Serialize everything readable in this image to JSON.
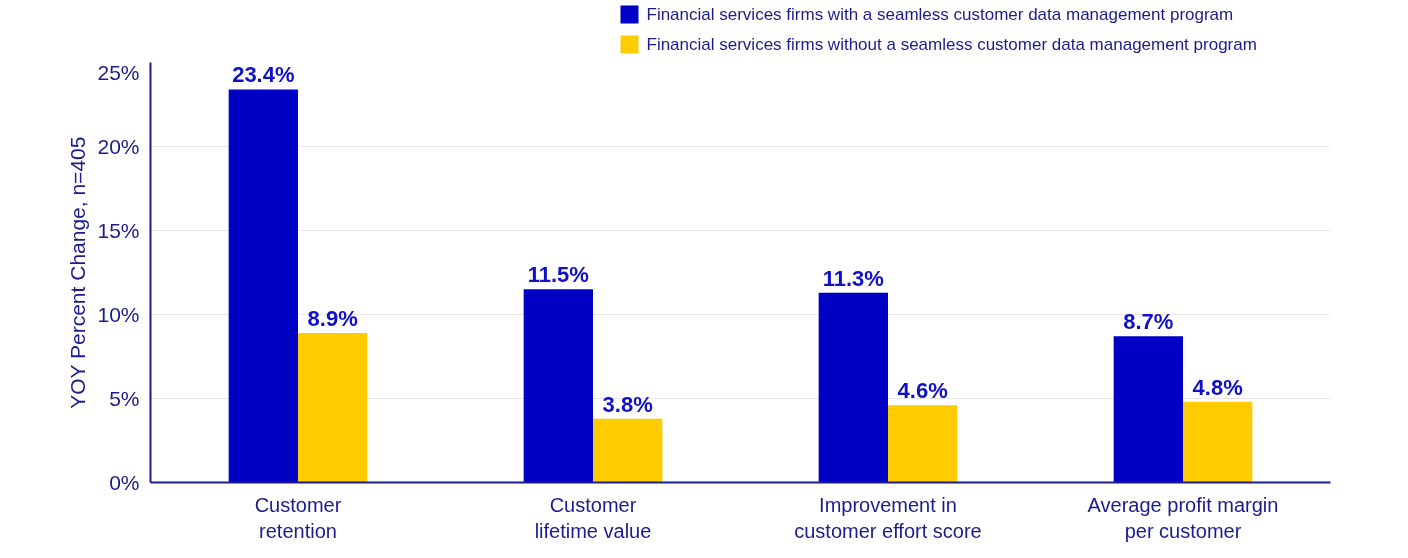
{
  "chart_data": {
    "type": "bar",
    "ylabel": "YOY Percent Change, n=405",
    "categories": [
      "Customer\nretention",
      "Customer\nlifetime value",
      "Improvement in\ncustomer effort score",
      "Average profit margin\nper customer"
    ],
    "series": [
      {
        "name": "Financial services firms with a seamless customer data management program",
        "color": "#0000c4",
        "values": [
          23.4,
          11.5,
          11.3,
          8.7
        ],
        "value_labels": [
          "23.4%",
          "11.5%",
          "11.3%",
          "8.7%"
        ]
      },
      {
        "name": "Financial services firms without a seamless customer data management program",
        "color": "#ffcc00",
        "values": [
          8.9,
          3.8,
          4.6,
          4.8
        ],
        "value_labels": [
          "8.9%",
          "3.8%",
          "4.6%",
          "4.8%"
        ]
      }
    ],
    "ylim": [
      0,
      25
    ],
    "yticks": [
      {
        "value": 0,
        "label": "0%"
      },
      {
        "value": 5,
        "label": "5%"
      },
      {
        "value": 10,
        "label": "10%"
      },
      {
        "value": 15,
        "label": "15%"
      },
      {
        "value": 20,
        "label": "20%"
      },
      {
        "value": 25,
        "label": "25%"
      }
    ],
    "grid": "y",
    "legend": "top right"
  }
}
